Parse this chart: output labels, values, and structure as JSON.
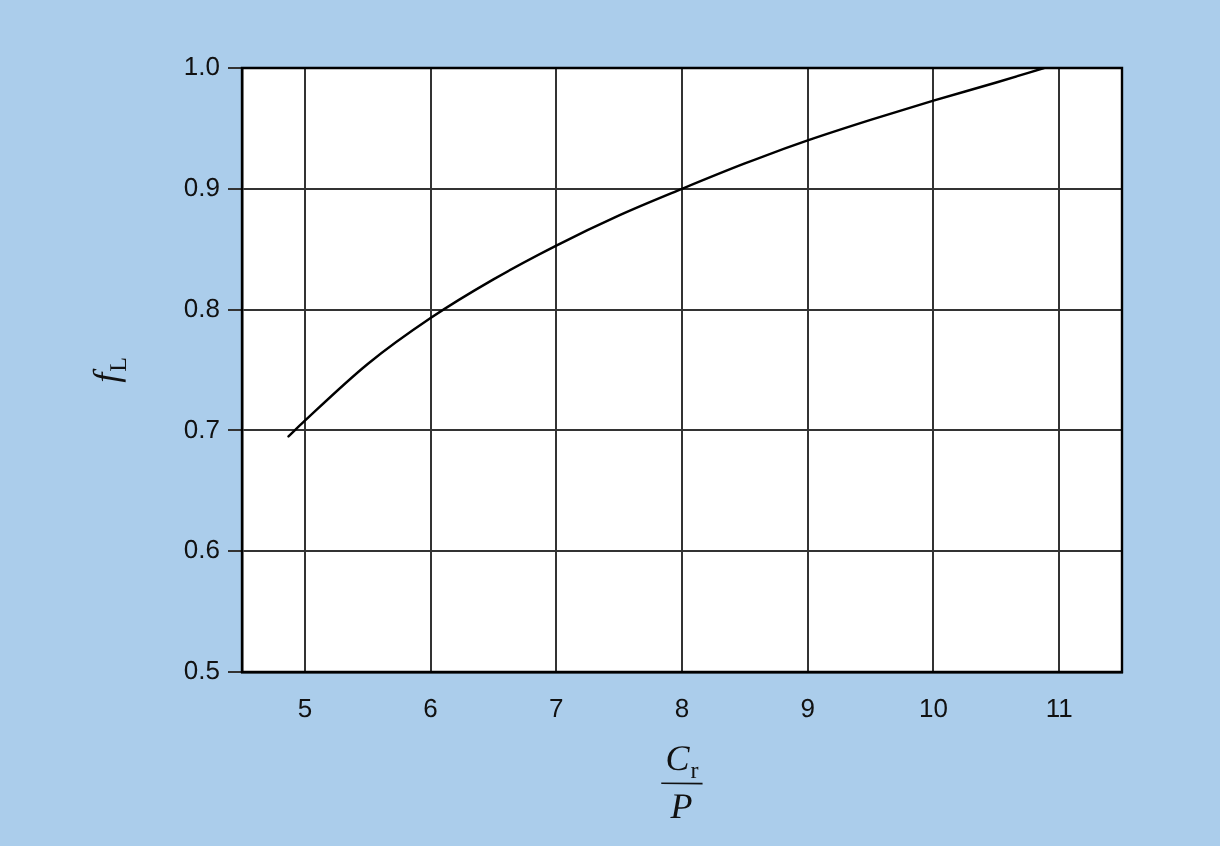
{
  "chart_data": {
    "type": "line",
    "xlabel": "C$_{r}$/P",
    "ylabel": "f$_{L}$",
    "xlim": [
      4.5,
      11.5
    ],
    "xticks": [
      5,
      6,
      7,
      8,
      9,
      10,
      11
    ],
    "ylim": [
      0.5,
      1.0
    ],
    "yticks": [
      {
        "value": 0.5,
        "label": "0.5"
      },
      {
        "value": 0.6,
        "label": "0.6"
      },
      {
        "value": 0.7,
        "label": "0.7"
      },
      {
        "value": 0.8,
        "label": "0.8"
      },
      {
        "value": 0.9,
        "label": "0.9"
      },
      {
        "value": 1,
        "label": "1.0"
      }
    ],
    "series": [
      {
        "color": "#000000",
        "x": [
          4.87,
          5,
          5.5,
          6,
          6.5,
          7,
          7.5,
          8,
          8.5,
          9,
          9.5,
          10,
          10.5,
          10.88
        ],
        "values": [
          0.695,
          0.708,
          0.755,
          0.793,
          0.825,
          0.853,
          0.878,
          0.9,
          0.921,
          0.94,
          0.957,
          0.973,
          0.988,
          1.0
        ]
      }
    ],
    "grid": true,
    "marker": "none",
    "line_style": "solid"
  }
}
